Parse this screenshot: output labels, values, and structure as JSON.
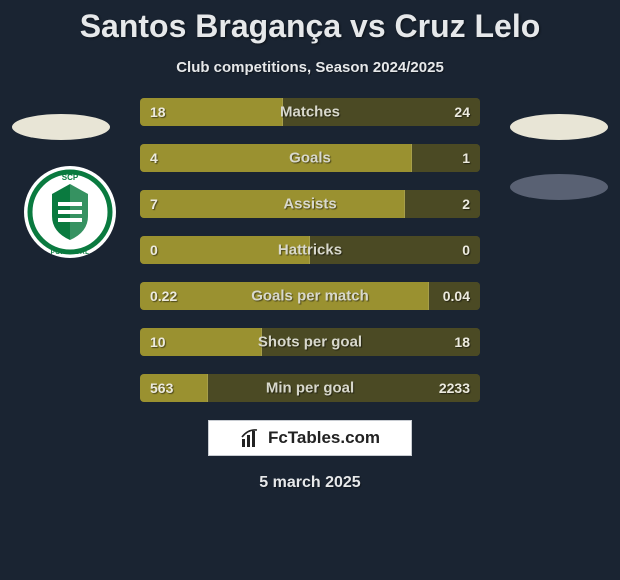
{
  "title": "Santos Bragança vs Cruz Lelo",
  "subtitle": "Club competitions, Season 2024/2025",
  "date": "5 march 2025",
  "footer_brand": "FcTables.com",
  "colors": {
    "background": "#1a2432",
    "bar_fill": "#9a9130",
    "bar_track": "#4b4a24",
    "text": "#e6e8ea",
    "badge": "#e8e5d6",
    "badge_right2": "#596173"
  },
  "club_logo": {
    "bg": "#ffffff",
    "ring": "#0a7a3f",
    "text": "SCP",
    "subtext": "PORTUGAL"
  },
  "stats": [
    {
      "label": "Matches",
      "left_val": "18",
      "right_val": "24",
      "left_pct": 42,
      "right_pct": 58
    },
    {
      "label": "Goals",
      "left_val": "4",
      "right_val": "1",
      "left_pct": 80,
      "right_pct": 20
    },
    {
      "label": "Assists",
      "left_val": "7",
      "right_val": "2",
      "left_pct": 78,
      "right_pct": 22
    },
    {
      "label": "Hattricks",
      "left_val": "0",
      "right_val": "0",
      "left_pct": 50,
      "right_pct": 50
    },
    {
      "label": "Goals per match",
      "left_val": "0.22",
      "right_val": "0.04",
      "left_pct": 85,
      "right_pct": 15
    },
    {
      "label": "Shots per goal",
      "left_val": "10",
      "right_val": "18",
      "left_pct": 36,
      "right_pct": 64
    },
    {
      "label": "Min per goal",
      "left_val": "563",
      "right_val": "2233",
      "left_pct": 20,
      "right_pct": 80
    }
  ],
  "font": {
    "title_size": 32,
    "subtitle_size": 15,
    "label_size": 15,
    "value_size": 14
  }
}
